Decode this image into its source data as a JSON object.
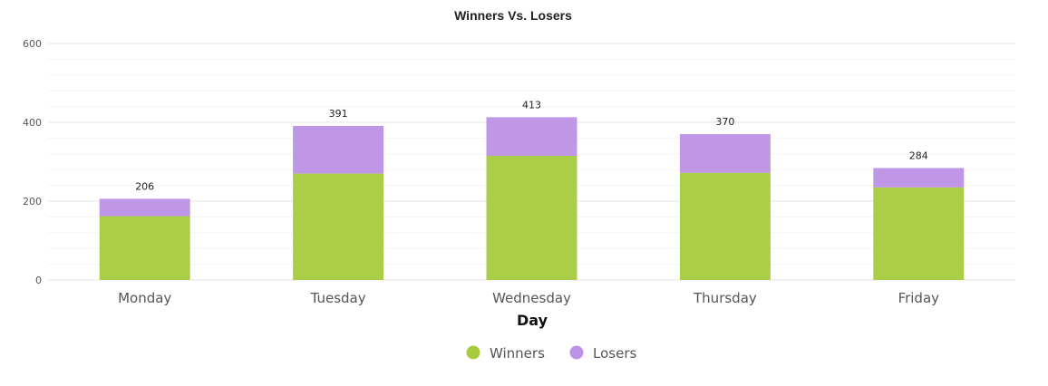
{
  "chart_data": {
    "type": "bar",
    "stacked": true,
    "title": "Winners Vs. Losers",
    "xlabel": "Day",
    "ylabel": "",
    "categories": [
      "Monday",
      "Tuesday",
      "Wednesday",
      "Thursday",
      "Friday"
    ],
    "series": [
      {
        "name": "Winners",
        "color": "#a6cb3f",
        "values": [
          162,
          270,
          315,
          272,
          235
        ]
      },
      {
        "name": "Losers",
        "color": "#bd91e6",
        "values": [
          44,
          121,
          98,
          98,
          49
        ]
      }
    ],
    "totals": [
      206,
      391,
      413,
      370,
      284
    ],
    "ylim": [
      0,
      600
    ],
    "yticks": [
      0,
      200,
      400,
      600
    ],
    "grid": true,
    "legend": "bottom-center"
  }
}
